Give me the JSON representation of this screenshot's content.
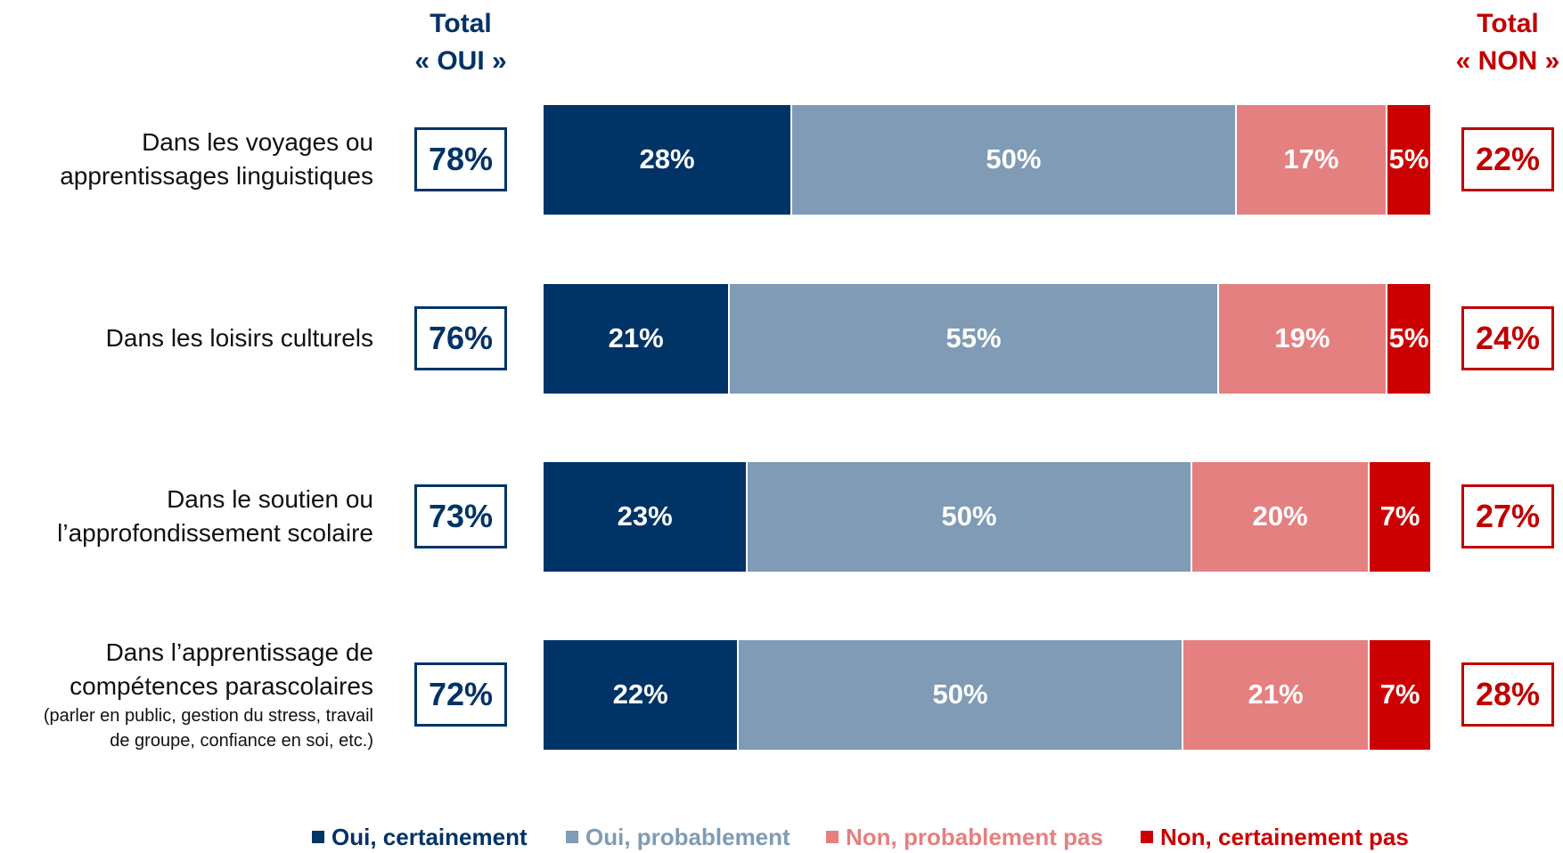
{
  "chart_data": {
    "type": "stacked_bar_horizontal",
    "header_yes": "Total\n« OUI »",
    "header_no": "Total\n« NON »",
    "categories": [
      "Dans les voyages ou\napprentissages linguistiques",
      "Dans les loisirs culturels",
      "Dans le soutien ou\nl’approfondissement scolaire",
      "Dans l’apprentissage de\ncompétences parascolaires"
    ],
    "category_note": "(parler en public, gestion du stress, travail\nde groupe, confiance en soi, etc.)",
    "xlim": [
      0,
      100
    ],
    "series": [
      {
        "name": "Oui, certainement",
        "color": "#003366",
        "values": [
          28,
          21,
          23,
          22
        ],
        "value_labels": [
          "28%",
          "21%",
          "23%",
          "22%"
        ]
      },
      {
        "name": "Oui, probablement",
        "color": "#7f9bb5",
        "values": [
          50,
          55,
          50,
          50
        ],
        "value_labels": [
          "50%",
          "55%",
          "50%",
          "50%"
        ]
      },
      {
        "name": "Non, probablement pas",
        "color": "#e58080",
        "values": [
          17,
          19,
          20,
          21
        ],
        "value_labels": [
          "17%",
          "19%",
          "20%",
          "21%"
        ]
      },
      {
        "name": "Non, certainement pas",
        "color": "#cc0000",
        "values": [
          5,
          5,
          7,
          7
        ],
        "value_labels": [
          "5%",
          "5%",
          "7%",
          "7%"
        ]
      }
    ],
    "totals_yes": [
      78,
      76,
      73,
      72
    ],
    "totals_yes_labels": [
      "78%",
      "76%",
      "73%",
      "72%"
    ],
    "totals_no": [
      22,
      24,
      27,
      28
    ],
    "totals_no_labels": [
      "22%",
      "24%",
      "27%",
      "28%"
    ],
    "color_yes": "#003366",
    "color_no": "#c00000"
  }
}
